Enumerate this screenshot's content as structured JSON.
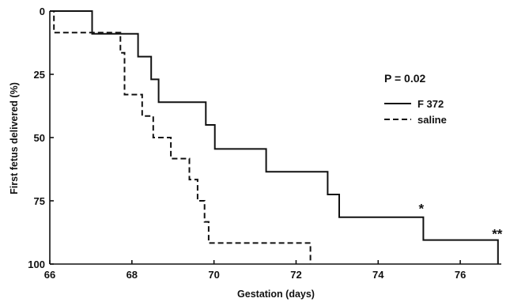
{
  "chart_data": {
    "type": "line",
    "step": true,
    "xlabel": "Gestation (days)",
    "ylabel": "First fetus delivered (%)",
    "xlim": [
      66,
      77
    ],
    "ylim": [
      0,
      100
    ],
    "y_inverted": true,
    "xticks": [
      66,
      68,
      70,
      72,
      74,
      76
    ],
    "yticks": [
      0,
      25,
      50,
      75,
      100
    ],
    "legend_placement": "right",
    "grid": false,
    "p_value_text": "P = 0.02",
    "series": [
      {
        "name": "F 372",
        "style": "solid",
        "points": [
          [
            66,
            0
          ],
          [
            67.03,
            0
          ],
          [
            67.03,
            9
          ],
          [
            68.15,
            9
          ],
          [
            68.15,
            18
          ],
          [
            68.47,
            18
          ],
          [
            68.47,
            27
          ],
          [
            68.65,
            27
          ],
          [
            68.65,
            36
          ],
          [
            69.8,
            36
          ],
          [
            69.8,
            45
          ],
          [
            70.02,
            45
          ],
          [
            70.02,
            54.5
          ],
          [
            71.27,
            54.5
          ],
          [
            71.27,
            63.5
          ],
          [
            72.77,
            63.5
          ],
          [
            72.77,
            72.5
          ],
          [
            73.05,
            72.5
          ],
          [
            73.05,
            81.5
          ],
          [
            75.1,
            81.5
          ],
          [
            75.1,
            90.5
          ],
          [
            76.92,
            90.5
          ],
          [
            76.92,
            100
          ]
        ]
      },
      {
        "name": "saline",
        "style": "dashed",
        "points": [
          [
            66,
            0
          ],
          [
            66.1,
            0
          ],
          [
            66.1,
            8.5
          ],
          [
            67.72,
            8.5
          ],
          [
            67.72,
            16.5
          ],
          [
            67.82,
            16.5
          ],
          [
            67.82,
            33
          ],
          [
            68.25,
            33
          ],
          [
            68.25,
            41.5
          ],
          [
            68.52,
            41.5
          ],
          [
            68.52,
            50
          ],
          [
            68.95,
            50
          ],
          [
            68.95,
            58.3
          ],
          [
            69.4,
            58.3
          ],
          [
            69.4,
            66.6
          ],
          [
            69.6,
            66.6
          ],
          [
            69.6,
            75
          ],
          [
            69.77,
            75
          ],
          [
            69.77,
            83.3
          ],
          [
            69.87,
            83.3
          ],
          [
            69.87,
            91.7
          ],
          [
            72.35,
            91.7
          ],
          [
            72.35,
            100
          ]
        ]
      }
    ],
    "annotations": [
      {
        "text": "*",
        "x": 75.05,
        "y": 78
      },
      {
        "text": "**",
        "x": 76.9,
        "y": 88
      }
    ]
  }
}
